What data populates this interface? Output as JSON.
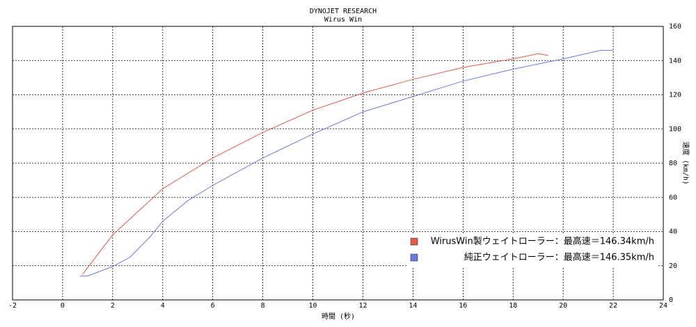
{
  "chart_data": {
    "type": "line",
    "title": "DYNOJET  RESEARCH",
    "subtitle": "Wirus Win",
    "x_label": "時間 (秒)",
    "y_label": "速度 (km/h)",
    "xlim": [
      -2,
      24
    ],
    "xticks": [
      -2,
      0,
      2,
      4,
      6,
      8,
      10,
      12,
      14,
      16,
      18,
      20,
      22,
      24
    ],
    "ylim": [
      0,
      160
    ],
    "yticks": [
      0,
      20,
      40,
      60,
      80,
      100,
      120,
      140,
      160
    ],
    "grid": true,
    "legend": "lower right",
    "series": [
      {
        "name": "WirusWin製ウェイトローラー：最高速＝146.34km/h",
        "color": "#e05a4a",
        "x": [
          0.8,
          2,
          4,
          6,
          8,
          10,
          12,
          14,
          16,
          18,
          19,
          19.4
        ],
        "values": [
          15,
          38,
          65,
          83,
          98,
          111,
          121,
          129,
          136,
          141,
          144,
          143
        ]
      },
      {
        "name": "純正ウェイトローラー：最高速＝146.35km/h",
        "color": "#6a7ae0",
        "x": [
          0.7,
          1,
          2,
          2.7,
          3.5,
          4,
          5,
          6,
          8,
          10,
          12,
          14,
          16,
          18,
          20,
          21.5,
          22
        ],
        "values": [
          14,
          14,
          19.5,
          25,
          37,
          46,
          58,
          67,
          83,
          97,
          110,
          119,
          128,
          135,
          141,
          146,
          146
        ]
      }
    ]
  }
}
